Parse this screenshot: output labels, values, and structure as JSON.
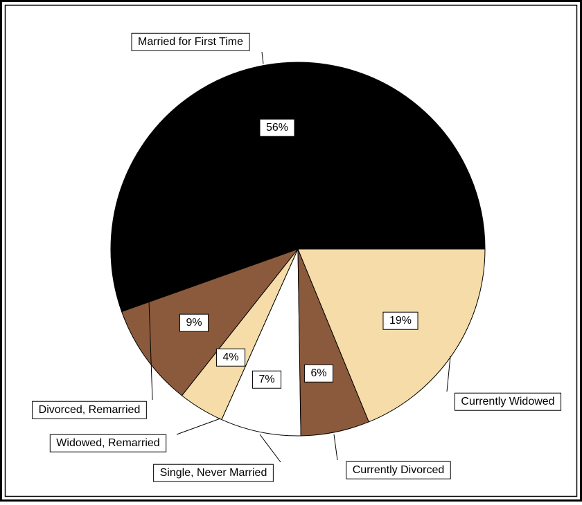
{
  "chart_data": {
    "type": "pie",
    "categories": [
      "Married for First Time",
      "Divorced, Remarried",
      "Widowed, Remarried",
      "Single, Never Married",
      "Currently Divorced",
      "Currently Widowed"
    ],
    "values": [
      56,
      9,
      4,
      7,
      6,
      19
    ],
    "value_labels": [
      "56%",
      "9%",
      "4%",
      "7%",
      "6%",
      "19%"
    ],
    "colors": [
      "#000000",
      "#8b5a3c",
      "#f5dca8",
      "#ffffff",
      "#8b5a3c",
      "#f5dca8"
    ]
  }
}
